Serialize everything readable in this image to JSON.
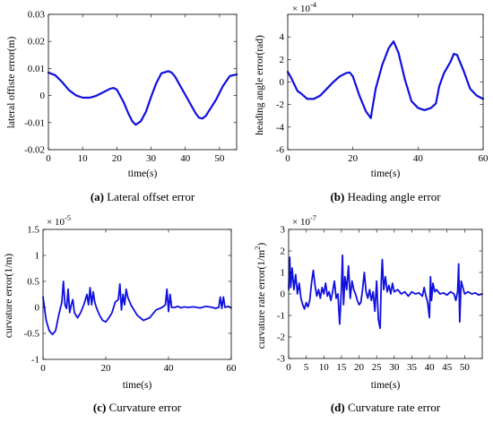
{
  "chart_data": [
    {
      "type": "line",
      "caption_tag": "(a)",
      "caption_text": " Lateral offset error",
      "xlabel": "time(s)",
      "ylabel": "lateral offiste error(m)",
      "exponent": "",
      "xlim": [
        0,
        55
      ],
      "ylim": [
        -0.02,
        0.03
      ],
      "xticks": [
        0,
        10,
        20,
        30,
        40,
        50
      ],
      "xtick_labels": [
        "0",
        "10",
        "20",
        "30",
        "40",
        "50"
      ],
      "yticks": [
        -0.02,
        -0.01,
        0,
        0.01,
        0.02,
        0.03
      ],
      "ytick_labels": [
        "-0.02",
        "-0.01",
        "0",
        "0.01",
        "0.02",
        "0.03"
      ],
      "grid": false,
      "x": [
        0,
        2,
        4,
        6,
        8,
        10,
        12,
        14,
        16,
        18,
        19,
        20,
        22,
        23.5,
        24.5,
        25.5,
        27,
        28.5,
        30,
        31.5,
        33,
        35,
        36,
        37,
        39,
        41,
        43,
        44,
        45,
        46,
        47,
        49,
        51,
        53,
        55
      ],
      "y": [
        0.0085,
        0.0075,
        0.005,
        0.002,
        0.0001,
        -0.0008,
        -0.0008,
        -0.0001,
        0.0012,
        0.0025,
        0.0028,
        0.0022,
        -0.0025,
        -0.007,
        -0.0095,
        -0.0108,
        -0.0095,
        -0.006,
        -0.0005,
        0.0045,
        0.0082,
        0.009,
        0.0085,
        0.007,
        0.0025,
        -0.002,
        -0.0065,
        -0.0082,
        -0.0085,
        -0.0075,
        -0.0055,
        -0.0015,
        0.0035,
        0.0072,
        0.0078
      ]
    },
    {
      "type": "line",
      "caption_tag": "(b)",
      "caption_text": " Heading angle error",
      "xlabel": "time(s)",
      "ylabel": "heading angle error(rad)",
      "exponent": "× 10",
      "exponent_power": "-4",
      "xlim": [
        0,
        60
      ],
      "ylim": [
        -6,
        6
      ],
      "xticks": [
        0,
        20,
        40,
        60
      ],
      "xtick_labels": [
        "0",
        "20",
        "40",
        "60"
      ],
      "yticks": [
        -6,
        -4,
        -2,
        0,
        2,
        4
      ],
      "ytick_labels": [
        "-6",
        "-4",
        "-2",
        "0",
        "2",
        "4"
      ],
      "grid": false,
      "x": [
        0,
        1,
        2,
        3,
        4,
        6,
        8,
        10,
        12,
        14,
        16,
        18,
        19,
        20,
        22,
        24,
        25.5,
        27,
        29,
        31,
        32.5,
        34,
        36,
        38,
        40,
        42,
        44,
        45.5,
        46.5,
        48,
        50,
        51,
        52,
        54,
        56,
        58,
        60
      ],
      "y": [
        0.9,
        0.4,
        -0.2,
        -0.8,
        -1.0,
        -1.5,
        -1.5,
        -1.2,
        -0.6,
        0.0,
        0.5,
        0.8,
        0.85,
        0.5,
        -1.2,
        -2.6,
        -3.2,
        -0.6,
        1.5,
        3.0,
        3.6,
        2.6,
        0.2,
        -1.7,
        -2.3,
        -2.5,
        -2.3,
        -1.9,
        -0.4,
        0.8,
        1.8,
        2.5,
        2.4,
        1.0,
        -0.6,
        -1.2,
        -1.5
      ]
    },
    {
      "type": "line",
      "caption_tag": "(c)",
      "caption_text": " Curvature error",
      "xlabel": "time(s)",
      "ylabel": "curvature error(1/m)",
      "exponent": "× 10",
      "exponent_power": "-5",
      "xlim": [
        0,
        60
      ],
      "ylim": [
        -1,
        1.5
      ],
      "xticks": [
        0,
        20,
        40,
        60
      ],
      "xtick_labels": [
        "0",
        "20",
        "40",
        "60"
      ],
      "yticks": [
        -1,
        -0.5,
        0,
        0.5,
        1,
        1.5
      ],
      "ytick_labels": [
        "-1",
        "-0.5",
        "0",
        "0.5",
        "1",
        "1.5"
      ],
      "grid": false,
      "x": [
        0,
        1,
        2,
        3,
        4,
        5,
        6,
        6.5,
        7,
        7.5,
        8,
        8.5,
        9,
        9.5,
        10,
        11,
        12,
        13,
        14,
        14.5,
        15,
        15.5,
        16,
        16.5,
        17,
        18,
        19,
        20,
        21,
        22,
        23,
        24,
        24.5,
        25,
        25.5,
        26,
        26.5,
        27,
        28,
        29,
        30,
        32,
        34,
        36,
        38,
        39,
        39.5,
        40,
        40.5,
        41,
        42,
        43,
        44,
        45,
        46,
        48,
        50,
        52,
        54,
        55,
        56,
        56.5,
        57,
        57.5,
        58,
        59,
        60
      ],
      "y": [
        0.2,
        -0.25,
        -0.45,
        -0.52,
        -0.45,
        -0.15,
        0.1,
        0.5,
        0.05,
        -0.02,
        0.35,
        -0.1,
        0.05,
        0.15,
        -0.1,
        -0.2,
        -0.1,
        0.05,
        0.25,
        0.05,
        0.38,
        0.05,
        0.3,
        0.1,
        0.0,
        -0.15,
        -0.25,
        -0.28,
        -0.2,
        -0.1,
        0.1,
        0.15,
        0.45,
        -0.05,
        0.25,
        0.05,
        0.35,
        0.2,
        0.05,
        -0.05,
        -0.15,
        -0.25,
        -0.2,
        -0.05,
        0.0,
        0.05,
        0.35,
        -0.08,
        0.25,
        0.0,
        0.0,
        0.02,
        -0.01,
        0.01,
        0.0,
        0.01,
        -0.01,
        0.02,
        0.0,
        -0.02,
        0.0,
        0.2,
        -0.02,
        0.2,
        0.0,
        0.02,
        -0.01
      ]
    },
    {
      "type": "line",
      "caption_tag": "(d)",
      "caption_text": " Curvature rate error",
      "xlabel": "time(s)",
      "ylabel": "curvature rate error(1/m",
      "ylabel_sup": "2",
      "ylabel_end": ")",
      "exponent": "× 10",
      "exponent_power": "-7",
      "xlim": [
        0,
        55
      ],
      "ylim": [
        -3,
        3
      ],
      "xticks": [
        0,
        5,
        10,
        15,
        20,
        25,
        30,
        35,
        40,
        45,
        50
      ],
      "xtick_labels": [
        "0",
        "5",
        "10",
        "15",
        "20",
        "25",
        "30",
        "35",
        "40",
        "45",
        "50"
      ],
      "yticks": [
        -3,
        -2,
        -1,
        0,
        1,
        2,
        3
      ],
      "ytick_labels": [
        "-3",
        "-2",
        "-1",
        "0",
        "1",
        "2",
        "3"
      ],
      "grid": false,
      "x": [
        0,
        0.3,
        0.6,
        1,
        1.5,
        2,
        2.5,
        3,
        3.5,
        4,
        4.5,
        5,
        5.5,
        6,
        6.5,
        7,
        7.5,
        8,
        8.5,
        9,
        9.5,
        10,
        10.5,
        11,
        11.5,
        12,
        12.5,
        13,
        13.5,
        14,
        14.5,
        15,
        15.3,
        15.6,
        16,
        16.5,
        17,
        17.5,
        18,
        18.5,
        19,
        19.5,
        20,
        20.5,
        21,
        21.5,
        22,
        22.5,
        23,
        23.5,
        24,
        24.5,
        25,
        25.5,
        26,
        26.3,
        26.6,
        27,
        27.5,
        28,
        28.5,
        29,
        29.5,
        30,
        31,
        32,
        33,
        34,
        35,
        36,
        37,
        38,
        38.5,
        39,
        39.5,
        40,
        40.3,
        40.6,
        41,
        41.5,
        42,
        43,
        44,
        45,
        46,
        47,
        47.5,
        48,
        48.3,
        48.6,
        49,
        50,
        51,
        52,
        53,
        54,
        55
      ],
      "y": [
        0.2,
        1.7,
        0.3,
        1.2,
        0.2,
        0.9,
        0.0,
        0.5,
        -0.2,
        -0.5,
        -0.7,
        -0.4,
        -0.6,
        -0.3,
        0.5,
        1.1,
        0.4,
        -0.1,
        0.2,
        -0.2,
        0.3,
        0.0,
        0.5,
        -0.1,
        0.1,
        -0.3,
        0.1,
        0.6,
        -0.2,
        0.0,
        -1.4,
        0.3,
        1.8,
        -0.5,
        0.8,
        0.2,
        1.3,
        -0.2,
        0.6,
        0.2,
        0.0,
        -0.3,
        -0.5,
        -0.4,
        0.2,
        1.0,
        0.1,
        -0.2,
        0.2,
        -0.3,
        0.1,
        -0.8,
        0.6,
        -1.2,
        -1.6,
        0.5,
        1.6,
        0.2,
        0.8,
        0.1,
        0.4,
        0.0,
        0.5,
        0.1,
        0.2,
        0.0,
        0.1,
        -0.1,
        0.1,
        0.0,
        0.05,
        -0.1,
        0.3,
        -0.1,
        -0.4,
        -1.1,
        0.8,
        -0.3,
        0.5,
        0.1,
        0.2,
        0.0,
        0.05,
        -0.05,
        0.1,
        0.0,
        -0.3,
        0.1,
        1.4,
        -1.3,
        0.6,
        0.0,
        0.1,
        0.0,
        0.05,
        -0.05,
        0.0
      ]
    }
  ]
}
